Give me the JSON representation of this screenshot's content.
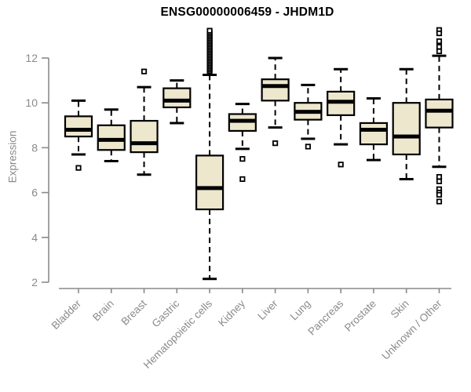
{
  "chart_title": "ENSG00000006459 - JHDM1D",
  "colors": {
    "box_fill": "#ede7ce",
    "box_border": "#000000",
    "median": "#000000",
    "whisker": "#000000",
    "outlier_stroke": "#000000",
    "outlier_fill": "#ffffff",
    "axis": "#8a8a8a",
    "tick_label": "#8a8a8a",
    "title": "#000000",
    "background": "#ffffff"
  },
  "chart_data": {
    "type": "boxplot",
    "title": "ENSG00000006459 - JHDM1D",
    "xlabel": "",
    "ylabel": "Expression",
    "ylim": [
      2,
      13.4
    ],
    "y_ticks": [
      2,
      4,
      6,
      8,
      10,
      12
    ],
    "grid": false,
    "legend": false,
    "categories": [
      "Bladder",
      "Brain",
      "Breast",
      "Gastric",
      "Hematopoietic cells",
      "Kidney",
      "Liver",
      "Lung",
      "Pancreas",
      "Prostate",
      "Skin",
      "Unknown / Other"
    ],
    "series": [
      {
        "name": "Bladder",
        "whisker_low": 7.7,
        "q1": 8.5,
        "median": 8.8,
        "q3": 9.4,
        "whisker_high": 10.1,
        "outliers": [
          7.1
        ]
      },
      {
        "name": "Brain",
        "whisker_low": 7.4,
        "q1": 7.9,
        "median": 8.35,
        "q3": 9.0,
        "whisker_high": 9.7,
        "outliers": []
      },
      {
        "name": "Breast",
        "whisker_low": 6.8,
        "q1": 7.8,
        "median": 8.2,
        "q3": 9.2,
        "whisker_high": 10.7,
        "outliers": [
          11.4
        ]
      },
      {
        "name": "Gastric",
        "whisker_low": 9.1,
        "q1": 9.8,
        "median": 10.1,
        "q3": 10.65,
        "whisker_high": 11.0,
        "outliers": []
      },
      {
        "name": "Hematopoietic cells",
        "whisker_low": 2.15,
        "q1": 5.25,
        "median": 6.2,
        "q3": 7.65,
        "whisker_high": 11.25,
        "outliers": [
          11.4,
          11.47,
          11.54,
          11.61,
          11.68,
          11.75,
          11.82,
          11.89,
          11.96,
          12.03,
          12.1,
          12.17,
          12.24,
          12.31,
          12.38,
          12.45,
          12.52,
          12.59,
          12.66,
          12.73,
          12.8,
          12.87,
          12.94,
          13.01,
          13.08,
          13.15,
          13.22
        ]
      },
      {
        "name": "Kidney",
        "whisker_low": 7.95,
        "q1": 8.75,
        "median": 9.2,
        "q3": 9.5,
        "whisker_high": 9.95,
        "outliers": [
          7.5,
          6.6
        ]
      },
      {
        "name": "Liver",
        "whisker_low": 8.9,
        "q1": 10.1,
        "median": 10.75,
        "q3": 11.05,
        "whisker_high": 12.0,
        "outliers": [
          8.2
        ]
      },
      {
        "name": "Lung",
        "whisker_low": 8.4,
        "q1": 9.25,
        "median": 9.6,
        "q3": 10.0,
        "whisker_high": 10.8,
        "outliers": [
          8.05
        ]
      },
      {
        "name": "Pancreas",
        "whisker_low": 8.15,
        "q1": 9.45,
        "median": 10.05,
        "q3": 10.5,
        "whisker_high": 11.5,
        "outliers": [
          7.25
        ]
      },
      {
        "name": "Prostate",
        "whisker_low": 7.45,
        "q1": 8.15,
        "median": 8.8,
        "q3": 9.1,
        "whisker_high": 10.2,
        "outliers": []
      },
      {
        "name": "Skin",
        "whisker_low": 6.6,
        "q1": 7.7,
        "median": 8.5,
        "q3": 10.0,
        "whisker_high": 11.5,
        "outliers": []
      },
      {
        "name": "Unknown / Other",
        "whisker_low": 7.15,
        "q1": 8.9,
        "median": 9.65,
        "q3": 10.15,
        "whisker_high": 12.1,
        "outliers": [
          13.25,
          13.1,
          12.75,
          12.5,
          12.3,
          6.7,
          6.5,
          6.15,
          6.0,
          5.9,
          5.6
        ]
      }
    ]
  }
}
